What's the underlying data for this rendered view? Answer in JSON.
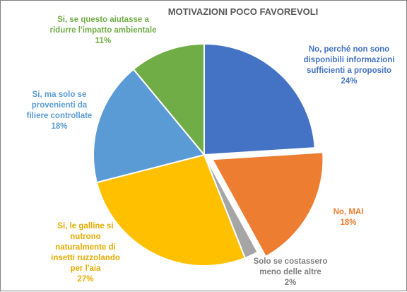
{
  "chart_data": {
    "type": "pie",
    "title": "MOTIVAZIONI POCO FAVOREVOLI",
    "slices": [
      {
        "label_lines": [
          "No, perché non sono",
          "disponibili informazioni",
          "sufficienti a proposito"
        ],
        "pct_text": "24%",
        "value": 24,
        "color": "#4472C4",
        "exploded": false
      },
      {
        "label_lines": [
          "No, MAI"
        ],
        "pct_text": "18%",
        "value": 18,
        "color": "#ED7D31",
        "exploded": true
      },
      {
        "label_lines": [
          "Solo se costassero",
          "meno delle altre"
        ],
        "pct_text": "2%",
        "value": 2,
        "color": "#A5A5A5",
        "exploded": false
      },
      {
        "label_lines": [
          "Si, le galline si",
          "nutrono",
          "naturalmente di",
          "insetti ruzzolando",
          "per l'aia"
        ],
        "pct_text": "27%",
        "value": 27,
        "color": "#FFC000",
        "exploded": false
      },
      {
        "label_lines": [
          "Si, ma solo se",
          "provenienti da",
          "filiere controllate"
        ],
        "pct_text": "18%",
        "value": 18,
        "color": "#5B9BD5",
        "exploded": false
      },
      {
        "label_lines": [
          "Si, se questo aiutasse a",
          "ridurre l'impatto ambientale"
        ],
        "pct_text": "11%",
        "value": 11,
        "color": "#70AD47",
        "exploded": false
      }
    ]
  }
}
